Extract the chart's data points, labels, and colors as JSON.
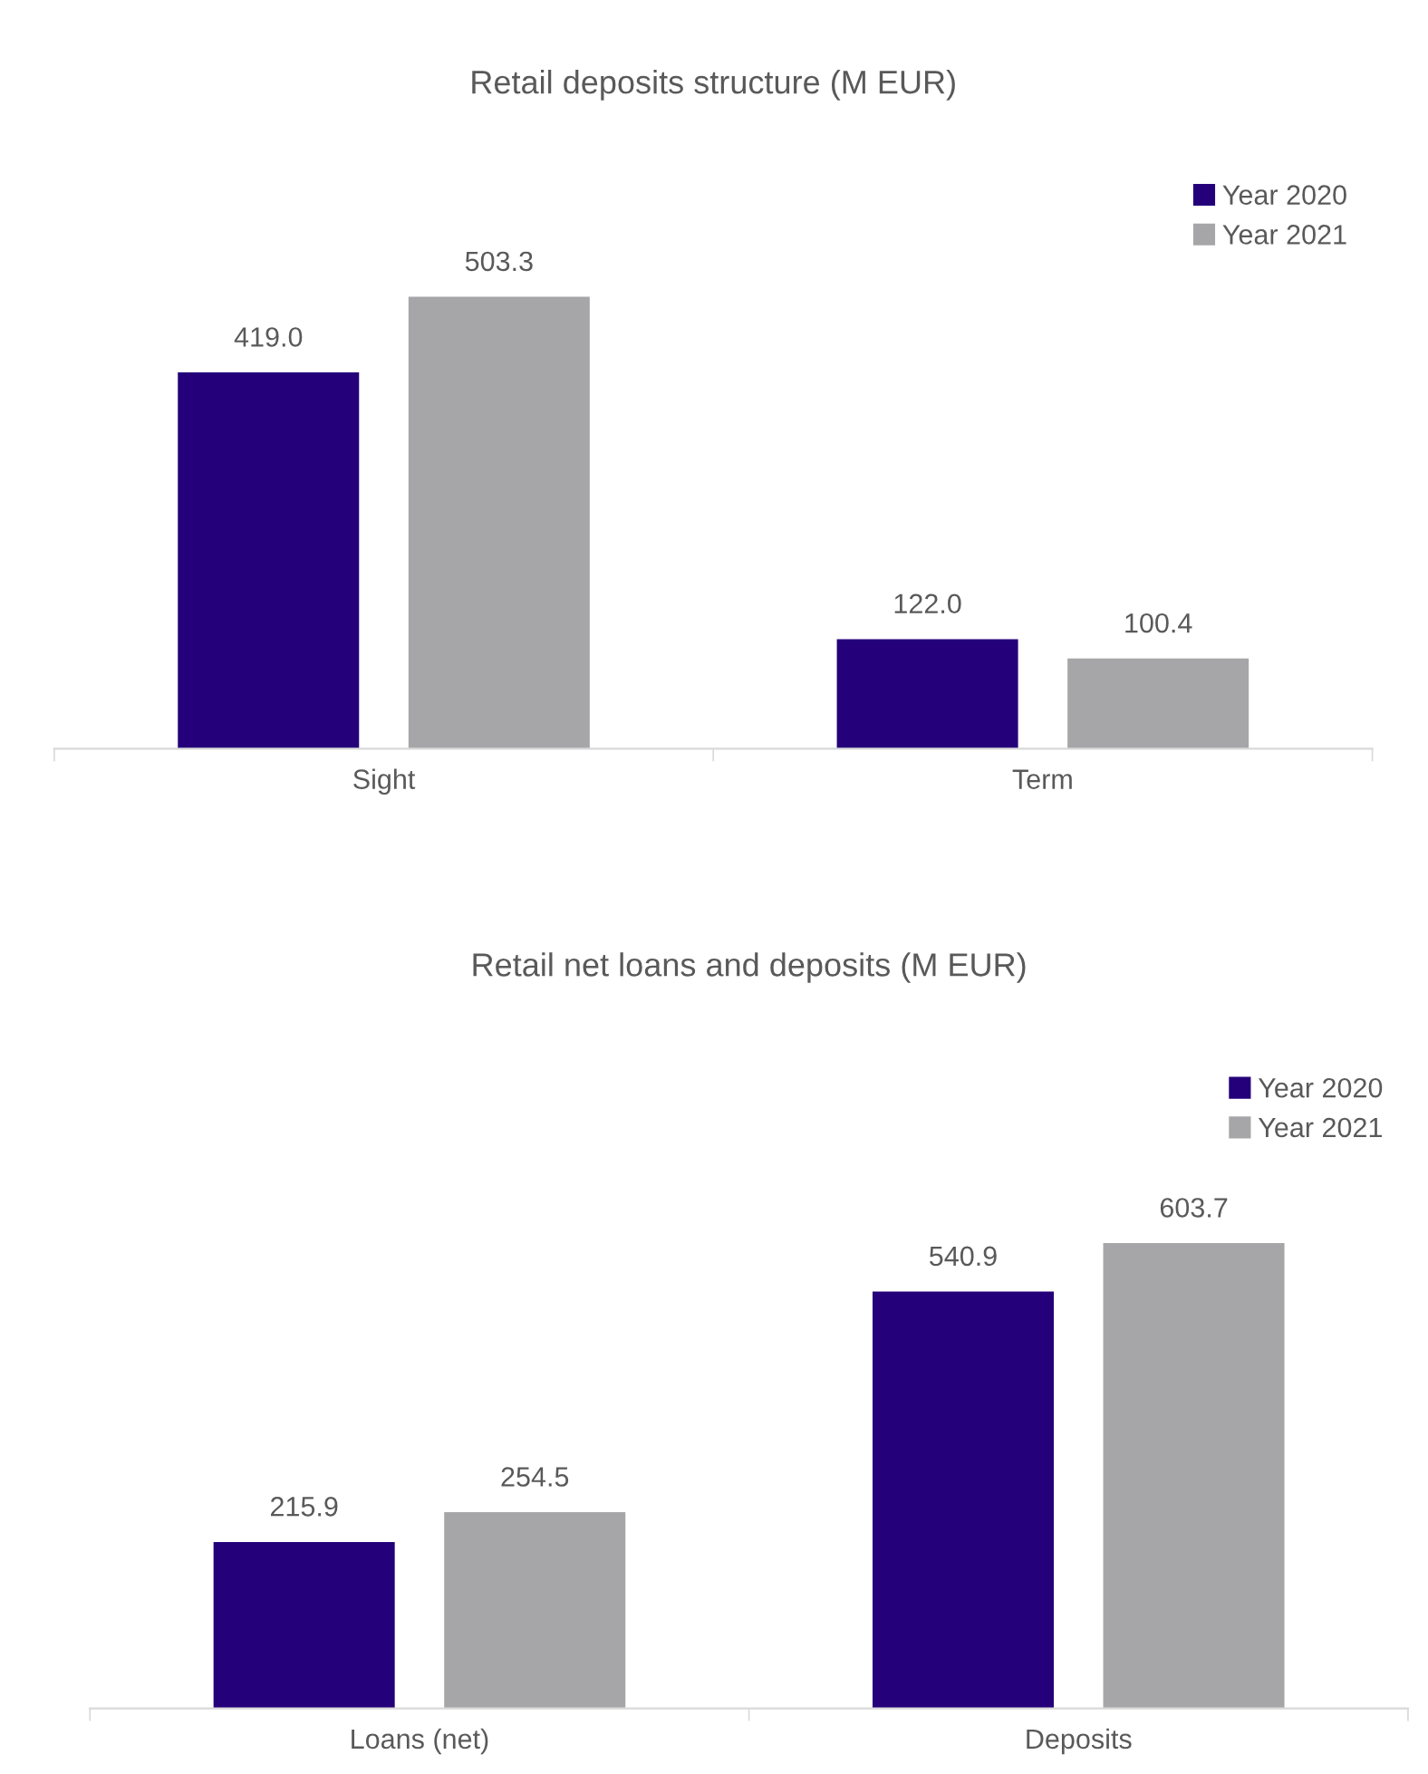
{
  "chart_data": [
    {
      "type": "bar",
      "title": "Retail deposits structure (M EUR)",
      "categories": [
        "Sight",
        "Term"
      ],
      "series": [
        {
          "name": "Year 2020",
          "color": "#24007a",
          "values": [
            419.0,
            122.0
          ],
          "value_labels": [
            "419.0",
            "122.0"
          ]
        },
        {
          "name": "Year 2021",
          "color": "#a6a6a8",
          "values": [
            503.3,
            100.4
          ],
          "value_labels": [
            "503.3",
            "100.4"
          ]
        }
      ],
      "legend": "top right",
      "grid": false
    },
    {
      "type": "bar",
      "title": "Retail net loans and deposits (M EUR)",
      "categories": [
        "Loans (net)",
        "Deposits"
      ],
      "series": [
        {
          "name": "Year 2020",
          "color": "#24007a",
          "values": [
            215.9,
            540.9
          ],
          "value_labels": [
            "215.9",
            "540.9"
          ]
        },
        {
          "name": "Year 2021",
          "color": "#a6a6a8",
          "values": [
            254.5,
            603.7
          ],
          "value_labels": [
            "254.5",
            "603.7"
          ]
        }
      ],
      "legend": "top right",
      "grid": false
    }
  ]
}
